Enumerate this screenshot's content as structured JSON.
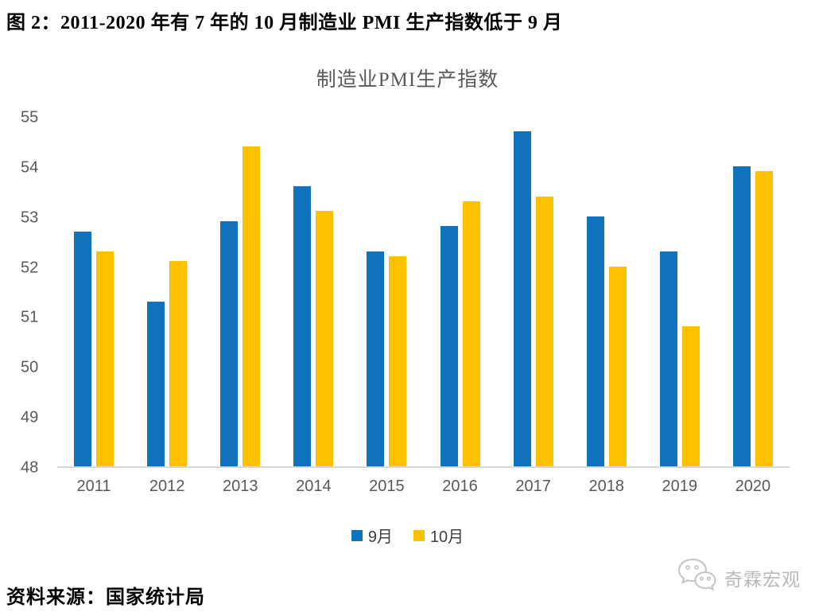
{
  "page": {
    "title": "图 2：2011-2020 年有 7 年的 10 月制造业 PMI 生产指数低于 9 月"
  },
  "footer": {
    "source": "资料来源：国家统计局"
  },
  "brand": {
    "name": "奇霖宏观",
    "icon": "wechat-bubbles-icon"
  },
  "chart_data": {
    "type": "bar",
    "title": "制造业PMI生产指数",
    "categories": [
      "2011",
      "2012",
      "2013",
      "2014",
      "2015",
      "2016",
      "2017",
      "2018",
      "2019",
      "2020"
    ],
    "series": [
      {
        "name": "9月",
        "color": "#1072BD",
        "values": [
          52.7,
          51.3,
          52.9,
          53.6,
          52.3,
          52.8,
          54.7,
          53.0,
          52.3,
          54.0
        ]
      },
      {
        "name": "10月",
        "color": "#FFC000",
        "values": [
          52.3,
          52.1,
          54.4,
          53.1,
          52.2,
          53.3,
          53.4,
          52.0,
          50.8,
          53.9
        ]
      }
    ],
    "xlabel": "",
    "ylabel": "",
    "ylim": [
      48,
      55
    ],
    "ytick_step": 1,
    "grid": false,
    "legend_position": "bottom",
    "baseline_color": "#d9d9d9",
    "axis_text_color": "#595959"
  }
}
